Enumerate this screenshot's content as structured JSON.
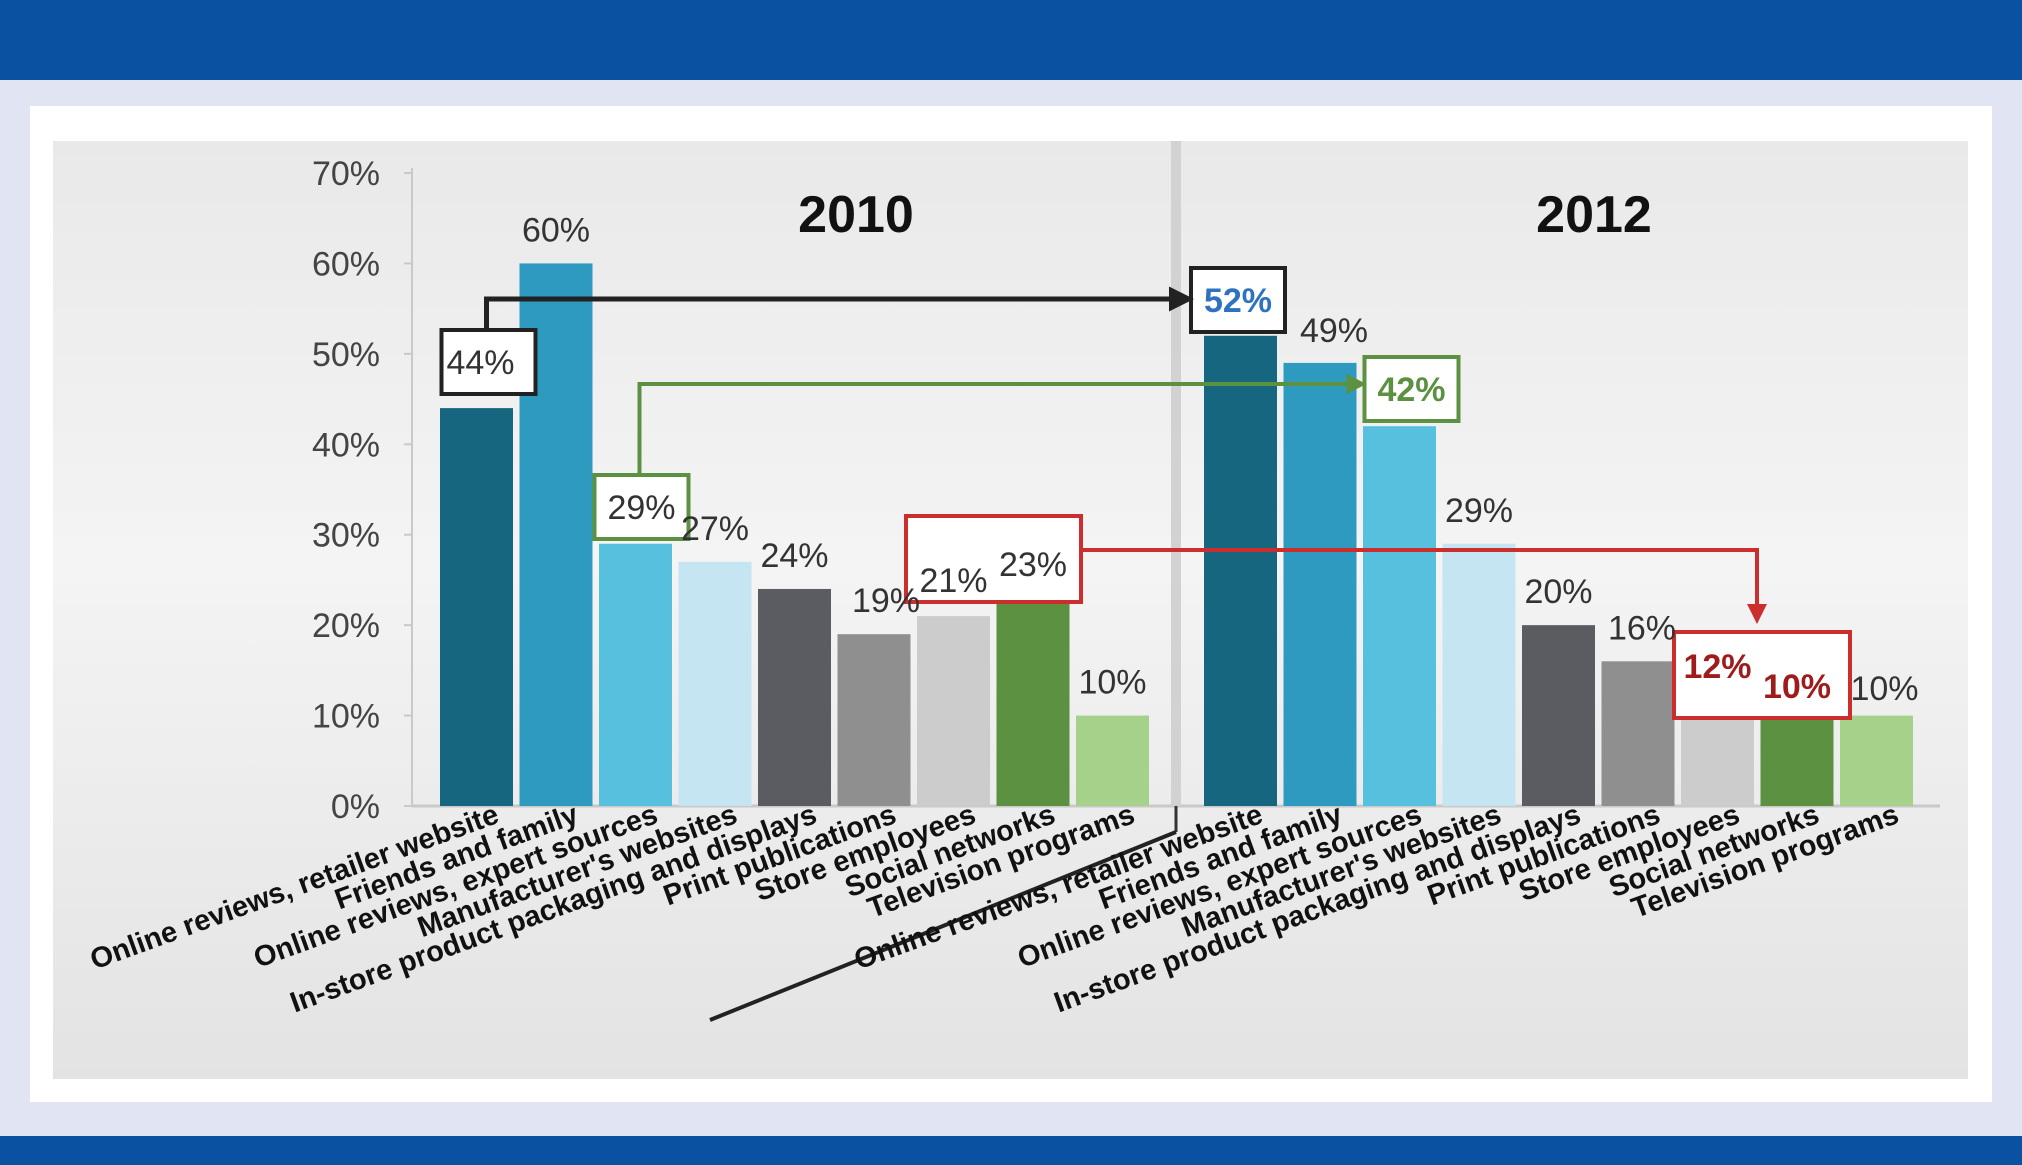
{
  "chart_data": {
    "type": "bar",
    "ylim": [
      0,
      70
    ],
    "yticks": [
      "0%",
      "10%",
      "20%",
      "30%",
      "40%",
      "50%",
      "60%",
      "70%"
    ],
    "categories": [
      "Online reviews, retailer website",
      "Friends and family",
      "Online reviews, expert sources",
      "Manufacturer's websites",
      "In-store product packaging and displays",
      "Print publications",
      "Store employees",
      "Social networks",
      "Television programs"
    ],
    "colors": [
      "#17667f",
      "#2f9ac0",
      "#57c0df",
      "#c5e5f2",
      "#5a5c62",
      "#8f8f8f",
      "#cccccc",
      "#5b9140",
      "#a6d18a"
    ],
    "highlight_colors": {
      "black": "#222222",
      "green": "#5b9140",
      "red": "#cc2d2d",
      "blue_text": "#2f72bf",
      "dark_red_text": "#9e1c1c"
    },
    "panels": [
      {
        "title": "2010",
        "values": [
          44,
          60,
          29,
          27,
          24,
          19,
          21,
          23,
          10
        ],
        "labels": [
          "44%",
          "60%",
          "29%",
          "27%",
          "24%",
          "19%",
          "21%",
          "23%",
          "10%"
        ]
      },
      {
        "title": "2012",
        "values": [
          52,
          49,
          42,
          29,
          20,
          16,
          12,
          10,
          10
        ],
        "labels": [
          "52%",
          "49%",
          "42%",
          "29%",
          "20%",
          "16%",
          "12%",
          "10%",
          "10%"
        ]
      }
    ]
  }
}
